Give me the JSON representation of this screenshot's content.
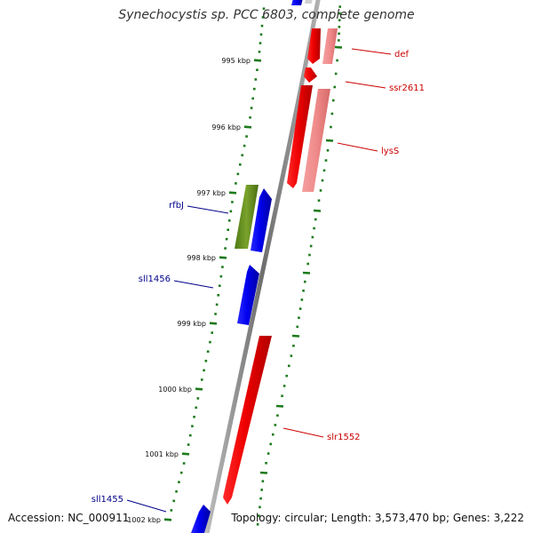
{
  "title": "Synechocystis sp. PCC 6803, complete genome",
  "footer": {
    "accession": "Accession: NC_000911",
    "summary": "Topology: circular; Length: 3,573,470 bp; Genes: 3,222"
  },
  "colors": {
    "backbone": "#8a8a8a",
    "tick": "#1c7a1c",
    "forward_gene": "#0000ee",
    "reverse_gene": "#ee0000",
    "reverse_gene_light": "#f08f8f",
    "rna_gene": "#5e8a1c",
    "forward_label": "#00008b",
    "reverse_label": "#cc0000"
  },
  "axis": {
    "unit": "kbp",
    "major_ticks": [
      {
        "kbp": 995,
        "label": "995 kbp"
      },
      {
        "kbp": 996,
        "label": "996 kbp"
      },
      {
        "kbp": 997,
        "label": "997 kbp"
      },
      {
        "kbp": 998,
        "label": "998 kbp"
      },
      {
        "kbp": 999,
        "label": "999 kbp"
      },
      {
        "kbp": 1000,
        "label": "1000 kbp"
      },
      {
        "kbp": 1001,
        "label": "1001 kbp"
      },
      {
        "kbp": 1002,
        "label": "1002 kbp"
      }
    ]
  },
  "genes": [
    {
      "name": "def",
      "strand": "reverse",
      "labeled": true
    },
    {
      "name": "ssr2611",
      "strand": "reverse",
      "labeled": true
    },
    {
      "name": "lysS",
      "strand": "reverse",
      "labeled": true
    },
    {
      "name": "rfbJ",
      "strand": "forward",
      "labeled": true
    },
    {
      "name": "sll1456",
      "strand": "forward",
      "labeled": true
    },
    {
      "name": "slr1552",
      "strand": "reverse",
      "labeled": true
    },
    {
      "name": "sll1455",
      "strand": "forward",
      "labeled": true
    }
  ]
}
